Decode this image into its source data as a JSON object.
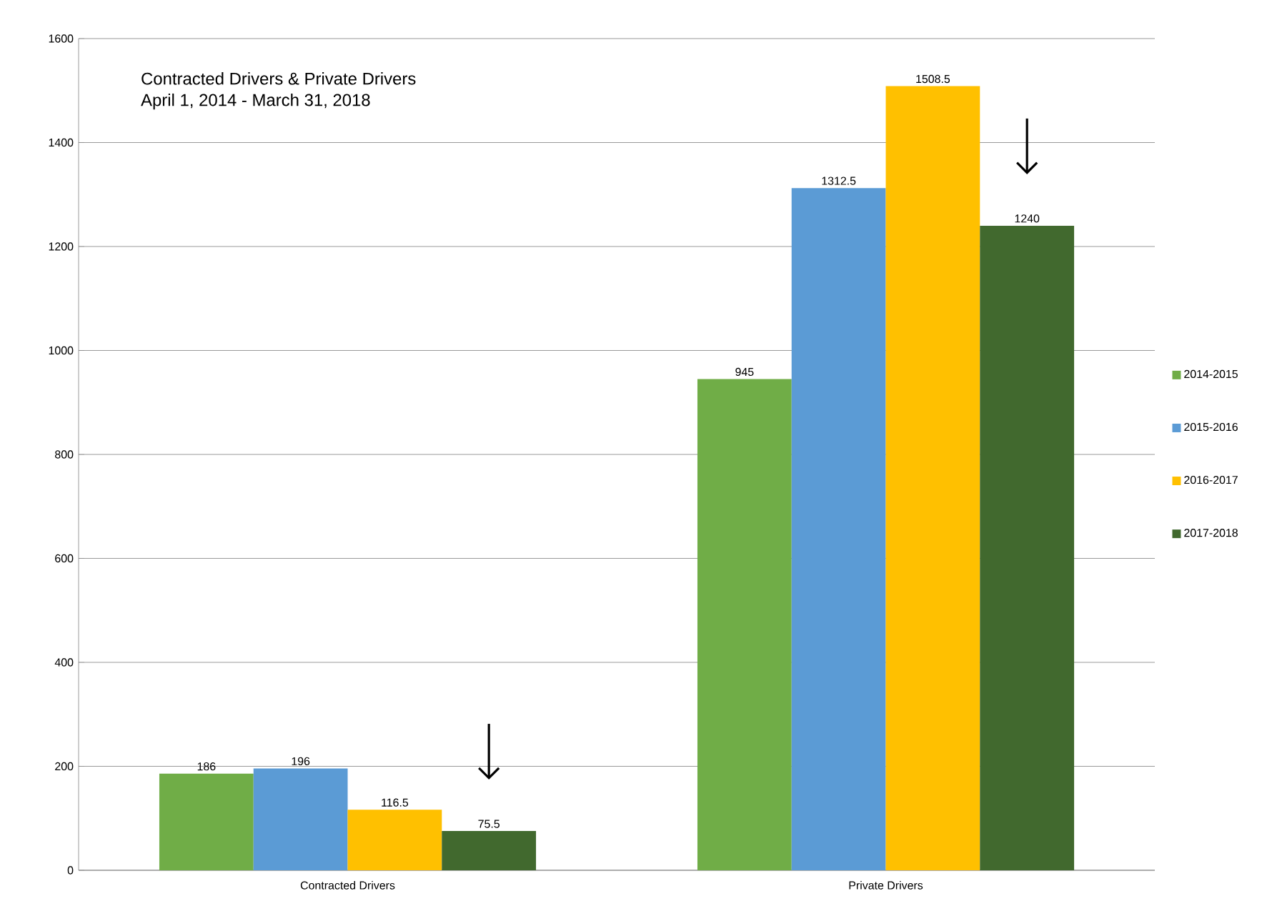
{
  "chart_data": {
    "type": "bar",
    "title": "Contracted Drivers & Private Drivers",
    "subtitle": "April 1, 2014 - March 31, 2018",
    "categories": [
      "Contracted  Drivers",
      "Private Drivers"
    ],
    "series": [
      {
        "name": "2014-2015",
        "color": "#70ad47",
        "values": [
          186,
          945
        ]
      },
      {
        "name": "2015-2016",
        "color": "#5b9bd5",
        "values": [
          196,
          1312.5
        ]
      },
      {
        "name": "2016-2017",
        "color": "#ffc000",
        "values": [
          116.5,
          1508.5
        ]
      },
      {
        "name": "2017-2018",
        "color": "#41692e",
        "values": [
          75.5,
          1240
        ]
      }
    ],
    "ylim": [
      0,
      1600
    ],
    "yticks": [
      0,
      200,
      400,
      600,
      800,
      1000,
      1200,
      1400,
      1600
    ],
    "grid": "y",
    "legend": "right",
    "data_labels": true
  }
}
